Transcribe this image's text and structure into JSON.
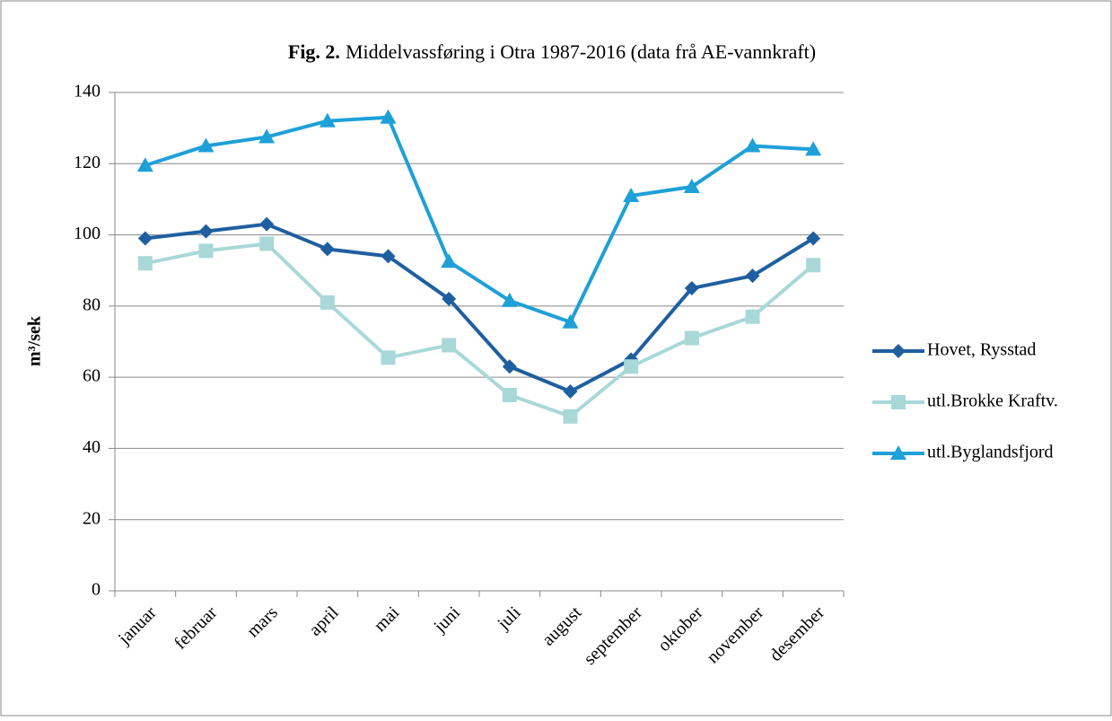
{
  "chart_data": {
    "type": "line",
    "figure_label": "Fig. 2.",
    "title": "Middelvassføring i Otra 1987-2016 (data frå AE-vannkraft)",
    "y_label": "m³/sek",
    "categories": [
      "januar",
      "februar",
      "mars",
      "april",
      "mai",
      "juni",
      "juli",
      "august",
      "september",
      "oktober",
      "november",
      "desember"
    ],
    "series": [
      {
        "name": "Hovet, Rysstad",
        "color": "#1f5fa0",
        "marker": "diamond",
        "values": [
          99,
          101,
          103,
          96,
          94,
          82,
          63,
          56,
          65,
          85,
          88.5,
          99
        ]
      },
      {
        "name": "utl.Brokke Kraftv.",
        "color": "#a8d8d8",
        "marker": "square",
        "values": [
          92,
          95.5,
          97.5,
          81,
          65.5,
          69,
          55,
          49,
          63,
          71,
          77,
          91.5
        ]
      },
      {
        "name": "utl.Byglandsfjord",
        "color": "#1ea0d8",
        "marker": "triangle",
        "values": [
          119.5,
          125,
          127.5,
          132,
          133,
          92.5,
          81.5,
          75.5,
          111,
          113.5,
          125,
          124
        ]
      }
    ],
    "ylim": [
      0,
      140
    ],
    "yticks": [
      0,
      20,
      40,
      60,
      80,
      100,
      120,
      140
    ],
    "grid": true,
    "legend": "right"
  }
}
